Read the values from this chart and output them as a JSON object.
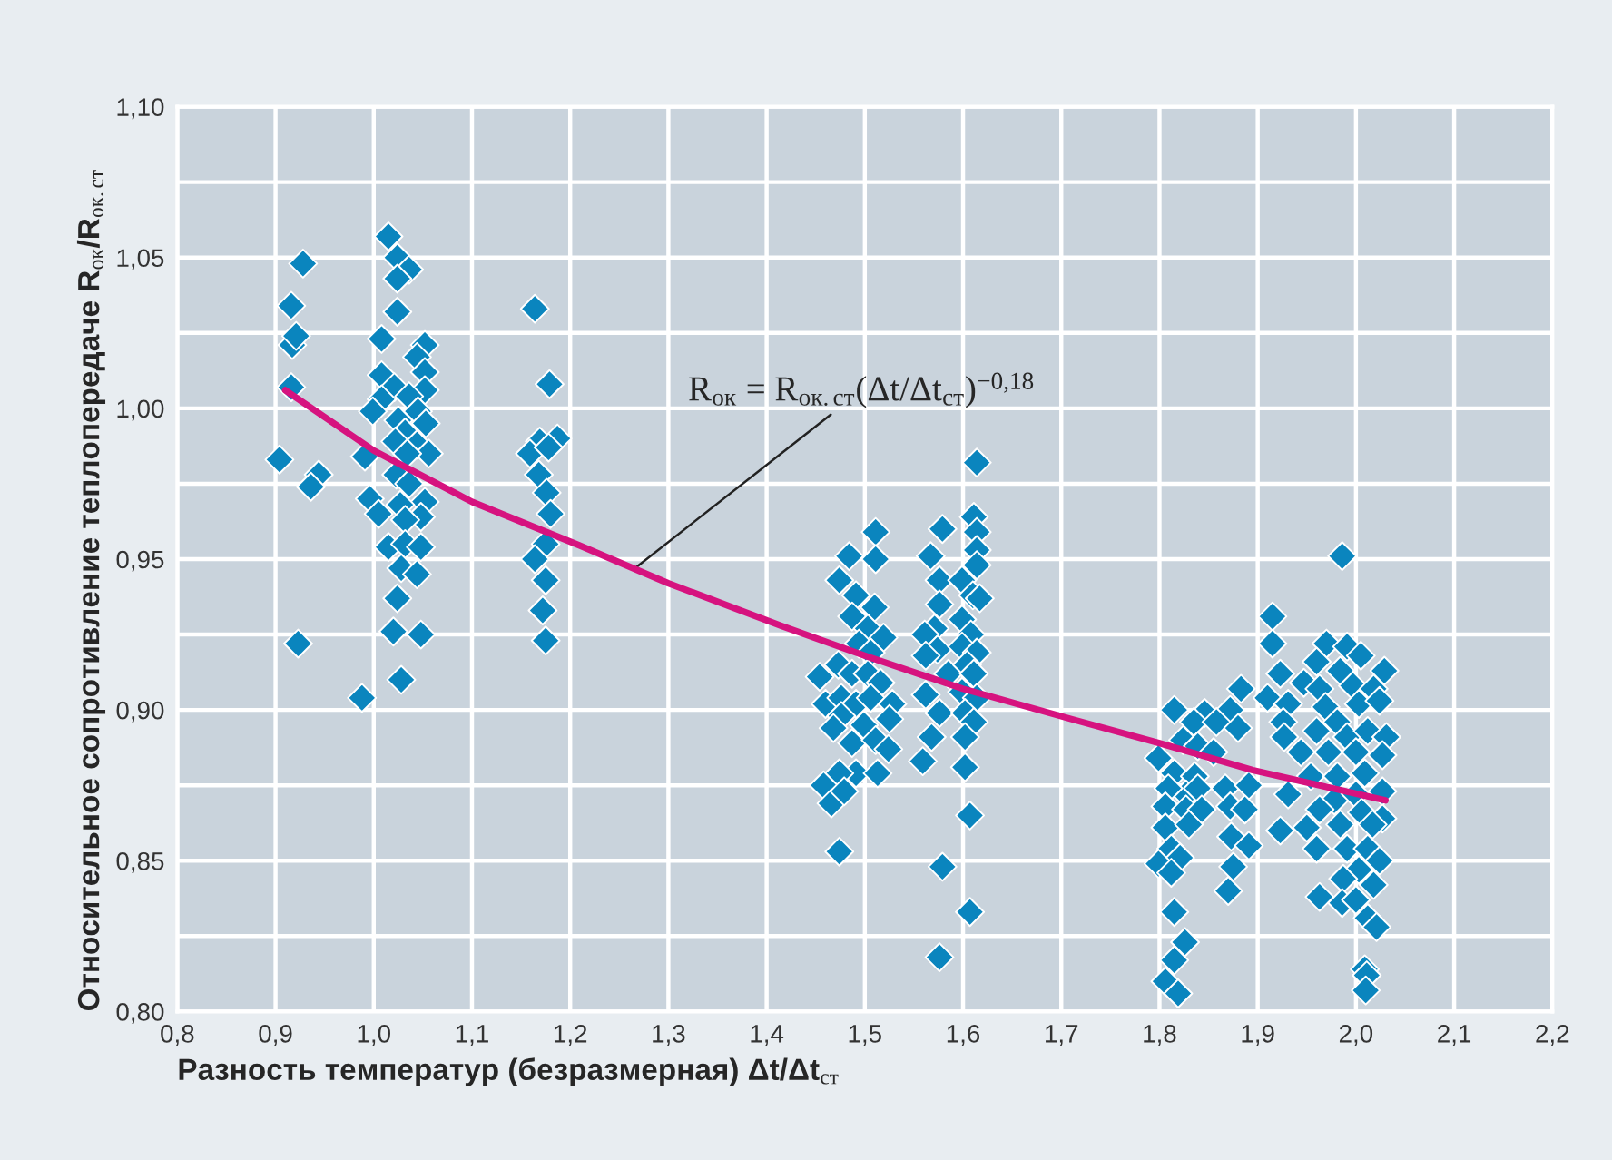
{
  "chart_data": {
    "type": "scatter",
    "xlabel": "Разность температур (безразмерная) Δt/Δt$_{ст}$",
    "ylabel": "Относительное сопротивление теплопередаче R$_{ок}$/R$_{ок.ст}$",
    "xlim": [
      0.8,
      2.2
    ],
    "ylim": [
      0.8,
      1.1
    ],
    "xticks": [
      {
        "value": 0.8,
        "label": "0,8"
      },
      {
        "value": 0.9,
        "label": "0,9"
      },
      {
        "value": 1.0,
        "label": "1,0"
      },
      {
        "value": 1.1,
        "label": "1,1"
      },
      {
        "value": 1.2,
        "label": "1,2"
      },
      {
        "value": 1.3,
        "label": "1,3"
      },
      {
        "value": 1.4,
        "label": "1,4"
      },
      {
        "value": 1.5,
        "label": "1,5"
      },
      {
        "value": 1.6,
        "label": "1,6"
      },
      {
        "value": 1.7,
        "label": "1,7"
      },
      {
        "value": 1.8,
        "label": "1,8"
      },
      {
        "value": 1.9,
        "label": "1,9"
      },
      {
        "value": 2.0,
        "label": "2,0"
      },
      {
        "value": 2.1,
        "label": "2,1"
      },
      {
        "value": 2.2,
        "label": "2,2"
      }
    ],
    "yticks": [
      {
        "value": 0.8,
        "label": "0,80"
      },
      {
        "value": 0.825,
        "label": null
      },
      {
        "value": 0.85,
        "label": "0,85"
      },
      {
        "value": 0.875,
        "label": null
      },
      {
        "value": 0.9,
        "label": "0,90"
      },
      {
        "value": 0.925,
        "label": null
      },
      {
        "value": 0.95,
        "label": "0,95"
      },
      {
        "value": 0.975,
        "label": null
      },
      {
        "value": 1.0,
        "label": "1,00"
      },
      {
        "value": 1.025,
        "label": null
      },
      {
        "value": 1.05,
        "label": "1,05"
      },
      {
        "value": 1.075,
        "label": null
      },
      {
        "value": 1.1,
        "label": "1,10"
      }
    ],
    "grid": true,
    "legend": false,
    "annotations": [
      {
        "text": "R$_{ок}$ = R$_{ок.ст}$(Δt/Δt$_{ст}$)$^{−0,18}$",
        "x": 1.266,
        "y": 0.947
      }
    ],
    "series": [
      {
        "marker": "diamond",
        "color": "#0a85be",
        "x": [
          0.928,
          0.916,
          0.917,
          0.921,
          0.916,
          0.904,
          0.944,
          0.936,
          0.923,
          0.988,
          0.991,
          0.996,
          1.005,
          1.015,
          1.024,
          1.036,
          1.024,
          1.024,
          1.008,
          1.052,
          1.044,
          1.052,
          1.008,
          1.021,
          1.052,
          1.036,
          1.008,
          0.999,
          1.045,
          1.053,
          1.025,
          1.032,
          1.022,
          1.044,
          1.056,
          1.034,
          1.023,
          1.036,
          1.052,
          1.027,
          1.048,
          1.032,
          1.015,
          1.032,
          1.048,
          1.028,
          1.044,
          1.024,
          1.02,
          1.048,
          1.028,
          1.164,
          1.179,
          1.169,
          1.187,
          1.159,
          1.178,
          1.168,
          1.176,
          1.18,
          1.175,
          1.164,
          1.175,
          1.172,
          1.175,
          1.614,
          1.511,
          1.484,
          1.511,
          1.474,
          1.491,
          1.51,
          1.487,
          1.503,
          1.519,
          1.494,
          1.473,
          1.506,
          1.454,
          1.487,
          1.503,
          1.516,
          1.46,
          1.476,
          1.491,
          1.506,
          1.528,
          1.476,
          1.499,
          1.525,
          1.468,
          1.487,
          1.511,
          1.524,
          1.491,
          1.513,
          1.474,
          1.458,
          1.466,
          1.479,
          1.474,
          1.579,
          1.567,
          1.576,
          1.576,
          1.571,
          1.561,
          1.574,
          1.562,
          1.585,
          1.562,
          1.576,
          1.568,
          1.559,
          1.579,
          1.576,
          1.611,
          1.614,
          1.614,
          1.614,
          1.599,
          1.61,
          1.617,
          1.599,
          1.608,
          1.599,
          1.614,
          1.604,
          1.611,
          1.599,
          1.614,
          1.602,
          1.611,
          1.602,
          1.602,
          1.607,
          1.607,
          1.815,
          1.846,
          1.872,
          1.835,
          1.858,
          1.88,
          1.883,
          1.824,
          1.839,
          1.855,
          1.799,
          1.815,
          1.836,
          1.827,
          1.809,
          1.839,
          1.867,
          1.891,
          1.806,
          1.827,
          1.843,
          1.872,
          1.887,
          1.806,
          1.83,
          1.873,
          1.812,
          1.821,
          1.891,
          1.799,
          1.812,
          1.875,
          1.87,
          1.815,
          1.826,
          1.815,
          1.806,
          1.819,
          1.986,
          1.915,
          1.915,
          1.923,
          1.91,
          1.931,
          1.926,
          1.927,
          1.97,
          1.991,
          2.005,
          1.96,
          1.984,
          2.029,
          1.947,
          1.963,
          1.997,
          2.018,
          1.969,
          2.003,
          2.024,
          1.981,
          1.96,
          1.991,
          2.012,
          2.031,
          1.944,
          1.972,
          2.0,
          2.027,
          1.954,
          1.981,
          2.009,
          1.931,
          1.978,
          2.0,
          2.027,
          1.963,
          2.006,
          2.027,
          1.923,
          1.95,
          1.984,
          2.017,
          1.96,
          1.991,
          2.012,
          2.024,
          2.003,
          1.987,
          2.018,
          1.963,
          1.986,
          2.0,
          2.012,
          2.021,
          2.009,
          2.011,
          2.01
        ],
        "values": [
          1.048,
          1.034,
          1.021,
          1.024,
          1.007,
          0.983,
          0.978,
          0.974,
          0.922,
          0.904,
          0.984,
          0.97,
          0.965,
          1.057,
          1.05,
          1.046,
          1.043,
          1.032,
          1.023,
          1.021,
          1.017,
          1.012,
          1.011,
          1.007,
          1.006,
          1.004,
          1.003,
          0.999,
          0.999,
          0.995,
          0.996,
          0.992,
          0.989,
          0.988,
          0.985,
          0.985,
          0.978,
          0.975,
          0.969,
          0.968,
          0.964,
          0.963,
          0.954,
          0.955,
          0.954,
          0.947,
          0.945,
          0.937,
          0.926,
          0.925,
          0.91,
          1.033,
          1.008,
          0.989,
          0.99,
          0.985,
          0.987,
          0.978,
          0.972,
          0.965,
          0.955,
          0.95,
          0.943,
          0.933,
          0.923,
          0.982,
          0.959,
          0.951,
          0.95,
          0.943,
          0.938,
          0.934,
          0.931,
          0.927,
          0.924,
          0.922,
          0.915,
          0.919,
          0.911,
          0.912,
          0.912,
          0.909,
          0.902,
          0.904,
          0.902,
          0.904,
          0.902,
          0.898,
          0.895,
          0.897,
          0.894,
          0.889,
          0.89,
          0.887,
          0.879,
          0.879,
          0.879,
          0.875,
          0.869,
          0.873,
          0.853,
          0.96,
          0.951,
          0.943,
          0.935,
          0.927,
          0.925,
          0.92,
          0.918,
          0.912,
          0.905,
          0.899,
          0.891,
          0.883,
          0.848,
          0.818,
          0.964,
          0.959,
          0.953,
          0.948,
          0.943,
          0.938,
          0.937,
          0.93,
          0.925,
          0.921,
          0.919,
          0.915,
          0.912,
          0.906,
          0.904,
          0.899,
          0.896,
          0.891,
          0.881,
          0.865,
          0.833,
          0.9,
          0.899,
          0.9,
          0.896,
          0.896,
          0.894,
          0.907,
          0.89,
          0.888,
          0.886,
          0.884,
          0.879,
          0.878,
          0.872,
          0.874,
          0.874,
          0.874,
          0.875,
          0.868,
          0.867,
          0.867,
          0.868,
          0.867,
          0.861,
          0.862,
          0.858,
          0.854,
          0.851,
          0.855,
          0.849,
          0.846,
          0.848,
          0.84,
          0.833,
          0.823,
          0.817,
          0.81,
          0.806,
          0.951,
          0.931,
          0.922,
          0.912,
          0.904,
          0.902,
          0.896,
          0.891,
          0.922,
          0.921,
          0.918,
          0.916,
          0.913,
          0.913,
          0.909,
          0.907,
          0.908,
          0.907,
          0.901,
          0.902,
          0.903,
          0.896,
          0.893,
          0.891,
          0.893,
          0.891,
          0.886,
          0.886,
          0.886,
          0.885,
          0.878,
          0.878,
          0.879,
          0.872,
          0.87,
          0.872,
          0.873,
          0.867,
          0.866,
          0.864,
          0.86,
          0.861,
          0.862,
          0.862,
          0.854,
          0.854,
          0.854,
          0.85,
          0.847,
          0.844,
          0.842,
          0.838,
          0.836,
          0.837,
          0.831,
          0.828,
          0.814,
          0.812,
          0.807
        ]
      },
      {
        "type": "line",
        "marker": "none",
        "color": "#d6137f",
        "x": [
          0.91,
          1.0,
          1.1,
          1.21,
          1.3,
          1.414,
          1.5,
          1.6,
          1.71,
          1.8,
          1.895,
          2.03
        ],
        "values": [
          1.006,
          0.986,
          0.969,
          0.9545,
          0.942,
          0.928,
          0.918,
          0.907,
          0.897,
          0.889,
          0.88,
          0.87
        ]
      }
    ]
  }
}
